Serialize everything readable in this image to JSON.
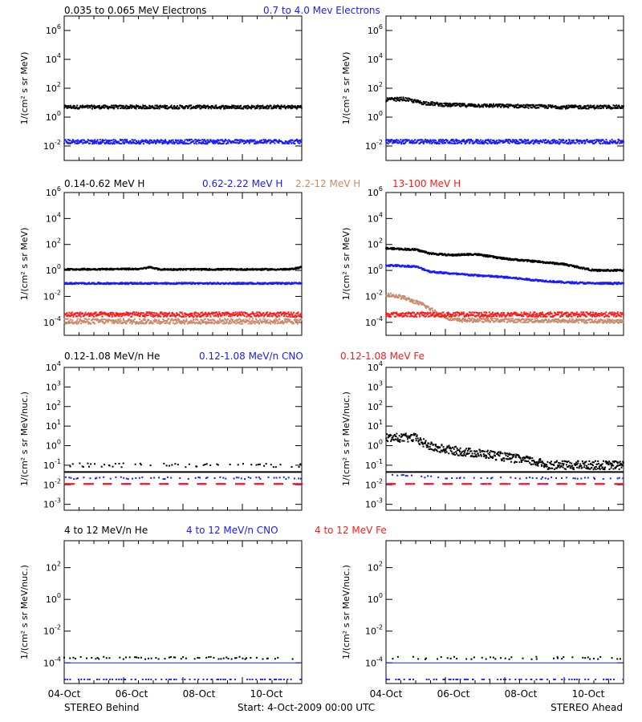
{
  "figure": {
    "bottom_left": "STEREO Behind",
    "bottom_center": "Start:  4-Oct-2009 00:00 UTC",
    "bottom_right": "STEREO Ahead"
  },
  "colors": {
    "black": "#000000",
    "blue": "#1a1aff",
    "tan": "#c98a6a",
    "red": "#ff1a1a"
  },
  "chart_data": [
    {
      "type": "scatter",
      "row": 0,
      "yscale": "log",
      "ylim": [
        0.001,
        10000000
      ],
      "ytick_exponents": [
        -2,
        0,
        2,
        4,
        6
      ],
      "ylabel": "1/(cm² s sr MeV)",
      "x_ticks": [
        "04-Oct",
        "06-Oct",
        "08-Oct",
        "10-Oct"
      ],
      "xlim_days": [
        0,
        8
      ],
      "headers": [
        {
          "text": "0.035 to 0.065 MeV Electrons",
          "color": "black"
        },
        {
          "text": "0.7 to 4.0 Mev Electrons",
          "color": "blue"
        }
      ],
      "panels": {
        "behind": {
          "series": [
            {
              "color": "black",
              "y": [
                [
                  0,
                  5
                ],
                [
                  8,
                  5
                ]
              ],
              "scatter": 0.12
            },
            {
              "color": "blue",
              "y": [
                [
                  0,
                  0.02
                ],
                [
                  8,
                  0.02
                ]
              ],
              "scatter": 0.15
            }
          ]
        },
        "ahead": {
          "series": [
            {
              "color": "black",
              "y": [
                [
                  0,
                  16
                ],
                [
                  0.6,
                  18
                ],
                [
                  1.2,
                  10
                ],
                [
                  2,
                  7
                ],
                [
                  4,
                  6
                ],
                [
                  6,
                  5
                ],
                [
                  8,
                  5
                ]
              ],
              "scatter": 0.12
            },
            {
              "color": "blue",
              "y": [
                [
                  0,
                  0.02
                ],
                [
                  8,
                  0.02
                ]
              ],
              "scatter": 0.15
            }
          ]
        }
      }
    },
    {
      "type": "scatter",
      "row": 1,
      "yscale": "log",
      "ylim": [
        1e-05,
        1000000
      ],
      "ytick_exponents": [
        -4,
        -2,
        0,
        2,
        4,
        6
      ],
      "ylabel": "1/(cm² s sr MeV)",
      "x_ticks": [
        "04-Oct",
        "06-Oct",
        "08-Oct",
        "10-Oct"
      ],
      "xlim_days": [
        0,
        8
      ],
      "headers": [
        {
          "text": "0.14-0.62 MeV H",
          "color": "black"
        },
        {
          "text": "0.62-2.22 MeV H",
          "color": "blue"
        },
        {
          "text": "2.2-12 MeV H",
          "color": "tan"
        },
        {
          "text": "13-100 MeV H",
          "color": "red"
        }
      ],
      "panels": {
        "behind": {
          "series": [
            {
              "color": "black",
              "y": [
                [
                  0,
                  1.2
                ],
                [
                  2.6,
                  1.3
                ],
                [
                  2.9,
                  1.8
                ],
                [
                  3.2,
                  1.2
                ],
                [
                  7.6,
                  1.2
                ],
                [
                  8,
                  1.8
                ]
              ],
              "scatter": 0.06
            },
            {
              "color": "blue",
              "y": [
                [
                  0,
                  0.1
                ],
                [
                  8,
                  0.1
                ]
              ],
              "scatter": 0.06
            },
            {
              "color": "tan",
              "y": [
                [
                  0,
                  0.00012
                ],
                [
                  8,
                  0.00012
                ]
              ],
              "scatter": 0.2
            },
            {
              "color": "red",
              "y": [
                [
                  0,
                  0.0004
                ],
                [
                  8,
                  0.0004
                ]
              ],
              "scatter": 0.18
            }
          ]
        },
        "ahead": {
          "series": [
            {
              "color": "black",
              "y": [
                [
                  0,
                  50
                ],
                [
                  1,
                  40
                ],
                [
                  1.5,
                  20
                ],
                [
                  2.2,
                  15
                ],
                [
                  3,
                  18
                ],
                [
                  4,
                  8
                ],
                [
                  5,
                  5
                ],
                [
                  6,
                  3
                ],
                [
                  7,
                  1
                ],
                [
                  8,
                  1
                ]
              ],
              "scatter": 0.07
            },
            {
              "color": "blue",
              "y": [
                [
                  0,
                  2.5
                ],
                [
                  1,
                  2
                ],
                [
                  1.5,
                  0.8
                ],
                [
                  2.5,
                  0.5
                ],
                [
                  4,
                  0.3
                ],
                [
                  5,
                  0.18
                ],
                [
                  6,
                  0.12
                ],
                [
                  7,
                  0.1
                ],
                [
                  8,
                  0.1
                ]
              ],
              "scatter": 0.07
            },
            {
              "color": "tan",
              "y": [
                [
                  0,
                  0.015
                ],
                [
                  0.6,
                  0.008
                ],
                [
                  1.3,
                  0.002
                ],
                [
                  1.8,
                  0.0004
                ],
                [
                  2.3,
                  0.00015
                ],
                [
                  8,
                  0.00012
                ]
              ],
              "scatter": 0.15
            },
            {
              "color": "red",
              "y": [
                [
                  0,
                  0.0004
                ],
                [
                  8,
                  0.0004
                ]
              ],
              "scatter": 0.18
            }
          ]
        }
      }
    },
    {
      "type": "scatter",
      "row": 2,
      "yscale": "log",
      "ylim": [
        0.0005,
        10000
      ],
      "ytick_exponents": [
        -3,
        -2,
        -1,
        0,
        1,
        2,
        3,
        4
      ],
      "ylabel": "1/(cm² s sr MeV/nuc.)",
      "x_ticks": [
        "04-Oct",
        "06-Oct",
        "08-Oct",
        "10-Oct"
      ],
      "xlim_days": [
        0,
        8
      ],
      "headers": [
        {
          "text": "0.12-1.08 MeV/n He",
          "color": "black"
        },
        {
          "text": "0.12-1.08 MeV/n CNO",
          "color": "blue"
        },
        {
          "text": "0.12-1.08 MeV Fe",
          "color": "red"
        }
      ],
      "panels": {
        "behind": {
          "levels": [
            {
              "color": "black",
              "y": 0.045
            }
          ],
          "series": [
            {
              "color": "black",
              "y": [
                [
                  0,
                  0.1
                ],
                [
                  8,
                  0.1
                ]
              ],
              "scatter": 0.1,
              "sparse": true
            },
            {
              "color": "blue",
              "y": [
                [
                  0,
                  0.022
                ],
                [
                  8,
                  0.022
                ]
              ],
              "scatter": 0.05,
              "sparse": true
            },
            {
              "color": "blue",
              "y": [
                [
                  0,
                  0.011
                ],
                [
                  8,
                  0.011
                ]
              ],
              "scatter": 0.0,
              "dashed": true
            },
            {
              "color": "red",
              "y": [
                [
                  0,
                  0.011
                ],
                [
                  8,
                  0.011
                ]
              ],
              "scatter": 0.0,
              "dashed": true
            }
          ]
        },
        "ahead": {
          "levels": [
            {
              "color": "black",
              "y": 0.045
            }
          ],
          "series": [
            {
              "color": "black",
              "y": [
                [
                  0,
                  2.5
                ],
                [
                  1,
                  2.5
                ],
                [
                  1.2,
                  1.5
                ],
                [
                  1.6,
                  0.8
                ],
                [
                  2.5,
                  0.5
                ],
                [
                  3.5,
                  0.35
                ],
                [
                  4.5,
                  0.2
                ],
                [
                  5,
                  0.15
                ],
                [
                  5.5,
                  0.1
                ],
                [
                  8,
                  0.1
                ]
              ],
              "scatter": 0.22
            },
            {
              "color": "blue",
              "y": [
                [
                  0,
                  0.035
                ],
                [
                  2,
                  0.022
                ],
                [
                  8,
                  0.022
                ]
              ],
              "scatter": 0.05,
              "sparse": true
            },
            {
              "color": "blue",
              "y": [
                [
                  0,
                  0.011
                ],
                [
                  8,
                  0.011
                ]
              ],
              "scatter": 0.0,
              "dashed": true
            },
            {
              "color": "red",
              "y": [
                [
                  0,
                  0.011
                ],
                [
                  8,
                  0.011
                ]
              ],
              "scatter": 0.0,
              "dashed": true
            }
          ]
        }
      }
    },
    {
      "type": "scatter",
      "row": 3,
      "yscale": "log",
      "ylim": [
        5e-06,
        5000
      ],
      "ytick_exponents": [
        -4,
        -2,
        0,
        2
      ],
      "ylabel": "1/(cm² s sr MeV/nuc.)",
      "x_ticks": [
        "04-Oct",
        "06-Oct",
        "08-Oct",
        "10-Oct"
      ],
      "xlim_days": [
        0,
        8
      ],
      "headers": [
        {
          "text": "4 to 12 MeV/n He",
          "color": "black"
        },
        {
          "text": "4 to 12 MeV/n CNO",
          "color": "blue"
        },
        {
          "text": "4 to 12 MeV Fe",
          "color": "red"
        }
      ],
      "panels": {
        "behind": {
          "levels": [
            {
              "color": "blue",
              "y": 0.0001
            }
          ],
          "series": [
            {
              "color": "black",
              "y": [
                [
                  0,
                  0.0002
                ],
                [
                  8,
                  0.0002
                ]
              ],
              "scatter": 0.08,
              "sparse": true
            },
            {
              "color": "blue",
              "y": [
                [
                  0,
                  9e-06
                ],
                [
                  8,
                  9e-06
                ]
              ],
              "scatter": 0.0,
              "sparse": true
            }
          ]
        },
        "ahead": {
          "levels": [
            {
              "color": "blue",
              "y": 0.0001
            }
          ],
          "series": [
            {
              "color": "black",
              "y": [
                [
                  0,
                  0.0002
                ],
                [
                  8,
                  0.0002
                ]
              ],
              "scatter": 0.08,
              "sparse": true
            },
            {
              "color": "blue",
              "y": [
                [
                  0,
                  9e-06
                ],
                [
                  8,
                  9e-06
                ]
              ],
              "scatter": 0.0,
              "sparse": true
            }
          ]
        }
      }
    }
  ]
}
